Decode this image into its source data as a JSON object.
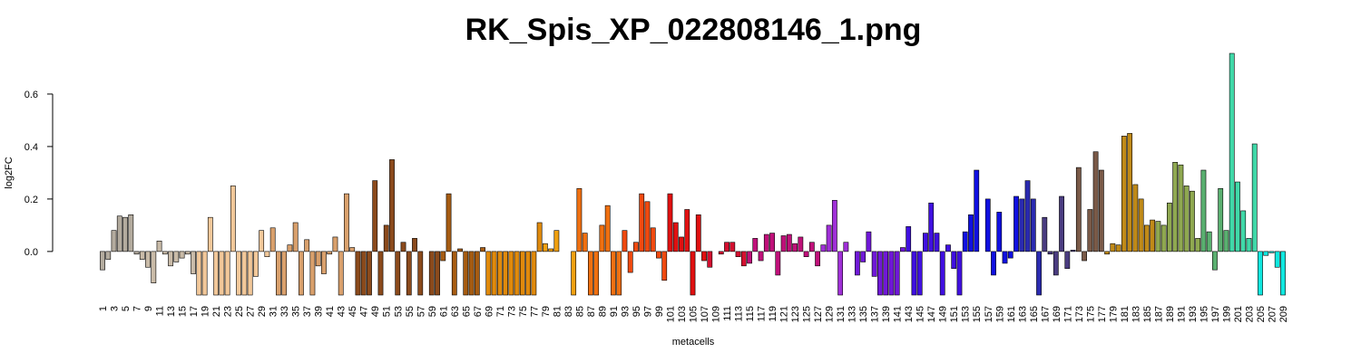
{
  "chart_data": {
    "type": "bar",
    "title": "RK_Spis_XP_022808146_1.png",
    "xlabel": "metacells",
    "ylabel": "log2FC",
    "categories": [
      "1",
      null,
      "3",
      null,
      "5",
      null,
      "7",
      null,
      "9",
      null,
      "11",
      null,
      "13",
      null,
      "15",
      null,
      "17",
      null,
      "19",
      null,
      "21",
      null,
      "23",
      null,
      "25",
      null,
      "27",
      null,
      "29",
      null,
      "31",
      null,
      "33",
      null,
      "35",
      null,
      "37",
      null,
      "39",
      null,
      "41",
      null,
      "43",
      null,
      "45",
      null,
      "47",
      null,
      "49",
      null,
      "51",
      null,
      "53",
      null,
      "55",
      null,
      "57",
      null,
      "59",
      null,
      "61",
      null,
      "63",
      null,
      "65",
      null,
      "67",
      null,
      "69",
      null,
      "71",
      null,
      "73",
      null,
      "75",
      null,
      "77",
      null,
      "79",
      null,
      "81",
      null,
      "83",
      null,
      "85",
      null,
      "87",
      null,
      "89",
      null,
      "91",
      null,
      "93",
      null,
      "95",
      null,
      "97",
      null,
      "99",
      null,
      "101",
      null,
      "103",
      null,
      "105",
      null,
      "107",
      null,
      "109",
      null,
      "111",
      null,
      "113",
      null,
      "115",
      null,
      "117",
      null,
      "119",
      null,
      "121",
      null,
      "123",
      null,
      "125",
      null,
      "127",
      null,
      "129",
      null,
      "131",
      null,
      "133",
      null,
      "135",
      null,
      "137",
      null,
      "139",
      null,
      "141",
      null,
      "143",
      null,
      "145",
      null,
      "147",
      null,
      "149",
      null,
      "151",
      null,
      "153",
      null,
      "155",
      null,
      "157",
      null,
      "159",
      null,
      "161",
      null,
      "163",
      null,
      "165",
      null,
      "167",
      null,
      "169",
      null,
      "171",
      null,
      "173",
      null,
      "175",
      null,
      "177",
      null,
      "179",
      null,
      "181",
      null,
      "183",
      null,
      "185",
      null,
      "187",
      null,
      "189",
      null,
      "191",
      null,
      "193",
      null,
      "195",
      null,
      "197",
      null,
      "199",
      null,
      "201",
      null,
      "203",
      null,
      "205",
      null,
      "207",
      null,
      "209"
    ],
    "values": [
      -0.07,
      -0.03,
      0.08,
      0.135,
      0.13,
      0.14,
      -0.01,
      -0.03,
      -0.06,
      -0.12,
      0.04,
      -0.01,
      -0.055,
      -0.04,
      -0.025,
      -0.01,
      -0.085,
      -0.166,
      -0.166,
      0.13,
      -0.166,
      -0.166,
      -0.166,
      0.25,
      -0.166,
      -0.166,
      -0.166,
      -0.095,
      0.08,
      -0.02,
      0.09,
      -0.166,
      -0.166,
      0.025,
      0.11,
      -0.166,
      0.045,
      -0.166,
      -0.055,
      -0.085,
      -0.01,
      0.055,
      -0.166,
      0.22,
      0.015,
      -0.166,
      -0.166,
      -0.166,
      0.27,
      -0.166,
      0.1,
      0.35,
      -0.166,
      0.035,
      -0.166,
      0.05,
      -0.166,
      0,
      -0.166,
      -0.166,
      -0.035,
      0.22,
      -0.166,
      0.01,
      -0.166,
      -0.166,
      -0.166,
      0.015,
      -0.166,
      -0.166,
      -0.166,
      -0.166,
      -0.166,
      -0.166,
      -0.166,
      -0.166,
      -0.166,
      0.11,
      0.03,
      0.01,
      0.08,
      0,
      0,
      -0.166,
      0.24,
      0.07,
      -0.166,
      -0.166,
      0.1,
      0.175,
      -0.166,
      -0.166,
      0.08,
      -0.08,
      0.035,
      0.22,
      0.19,
      0.09,
      -0.025,
      -0.11,
      0.22,
      0.11,
      0.055,
      0.16,
      -0.166,
      0.14,
      -0.035,
      -0.06,
      0,
      -0.01,
      0.035,
      0.035,
      -0.02,
      -0.055,
      -0.045,
      0.05,
      -0.035,
      0.065,
      0.07,
      -0.09,
      0.06,
      0.065,
      0.03,
      0.055,
      -0.02,
      0.035,
      -0.055,
      0.025,
      0.1,
      0.195,
      -0.166,
      0.035,
      0,
      -0.09,
      -0.04,
      0.075,
      -0.095,
      -0.166,
      -0.166,
      -0.166,
      -0.166,
      0.015,
      0.095,
      -0.166,
      -0.166,
      0.07,
      0.185,
      0.07,
      -0.166,
      0.025,
      -0.065,
      -0.166,
      0.075,
      0.14,
      0.31,
      0,
      0.2,
      -0.09,
      0.15,
      -0.045,
      -0.025,
      0.21,
      0.2,
      0.27,
      0.2,
      -0.166,
      0.13,
      -0.01,
      -0.09,
      0.21,
      -0.065,
      0.005,
      0.32,
      -0.035,
      0.16,
      0.38,
      0.31,
      -0.01,
      0.03,
      0.025,
      0.44,
      0.45,
      0.255,
      0.2,
      0.1,
      0.12,
      0.115,
      0.1,
      0.185,
      0.34,
      0.33,
      0.25,
      0.23,
      0.05,
      0.31,
      0.075,
      -0.07,
      0.24,
      0.08,
      0.755,
      0.265,
      0.155,
      0.05,
      0.41,
      -0.166,
      -0.015,
      -0.005,
      -0.06,
      -0.166
    ],
    "colors": [
      "#b3ab9e",
      "#b3ab9e",
      "#b3ab9e",
      "#b3ab9e",
      "#b3ab9e",
      "#b3ab9e",
      "#b3ab9e",
      "#c9bba8",
      "#c9bba8",
      "#c9bba8",
      "#c9bba8",
      "#c9bba8",
      "#c9bba8",
      "#c9bba8",
      "#c9bba8",
      "#c9bba8",
      "#c9bba8",
      "#f2c89a",
      "#f2c89a",
      "#f2c89a",
      "#f2c89a",
      "#f2c89a",
      "#f2c89a",
      "#f2c89a",
      "#f2c89a",
      "#f2c89a",
      "#f2c89a",
      "#f2c89a",
      "#f2c89a",
      "#f2c89a",
      "#d9a06c",
      "#d9a06c",
      "#d9a06c",
      "#d9a06c",
      "#d9a06c",
      "#d9a06c",
      "#d9a06c",
      "#d9a06c",
      "#d9a06c",
      "#d9a06c",
      "#d9a06c",
      "#d9a06c",
      "#d9a06c",
      "#d9a06c",
      "#d9a06c",
      "#8b4a1c",
      "#8b4a1c",
      "#8b4a1c",
      "#8b4a1c",
      "#8b4a1c",
      "#8b4a1c",
      "#8b4a1c",
      "#8b4a1c",
      "#8b4a1c",
      "#8b4a1c",
      "#8b4a1c",
      "#8b4a1c",
      "#8b4a1c",
      "#8b4a1c",
      "#8b4a1c",
      "#a65c12",
      "#a65c12",
      "#a65c12",
      "#a65c12",
      "#a65c12",
      "#a65c12",
      "#a65c12",
      "#a65c12",
      "#e08a0c",
      "#e08a0c",
      "#e08a0c",
      "#e08a0c",
      "#e08a0c",
      "#e08a0c",
      "#e08a0c",
      "#e08a0c",
      "#e08a0c",
      "#e08a0c",
      "#f0a010",
      "#f0a010",
      "#f0a010",
      "#f0a010",
      "#f0a010",
      "#f0a010",
      "#f07010",
      "#f07010",
      "#f07010",
      "#f07010",
      "#f07010",
      "#f07010",
      "#f07010",
      "#f07010",
      "#f04a10",
      "#f04a10",
      "#f04a10",
      "#f04a10",
      "#f04a10",
      "#f04a10",
      "#f04a10",
      "#f04a10",
      "#e01010",
      "#e01010",
      "#e01010",
      "#e01010",
      "#e01010",
      "#e01010",
      "#e01010",
      "#d41030",
      "#d41030",
      "#d41030",
      "#d41030",
      "#d41030",
      "#d41030",
      "#d41030",
      "#c0107a",
      "#c0107a",
      "#c0107a",
      "#c0107a",
      "#c0107a",
      "#c0107a",
      "#c0107a",
      "#c0107a",
      "#c0107a",
      "#c0107a",
      "#c0107a",
      "#c0107a",
      "#c0107a",
      "#a030d8",
      "#a030d8",
      "#a030d8",
      "#a030d8",
      "#a030d8",
      "#a030d8",
      "#7018d8",
      "#7018d8",
      "#7018d8",
      "#7018d8",
      "#7018d8",
      "#7018d8",
      "#7018d8",
      "#7018d8",
      "#7018d8",
      "#4010e0",
      "#4010e0",
      "#4010e0",
      "#4010e0",
      "#4010e0",
      "#4010e0",
      "#4010e0",
      "#4010e0",
      "#4010e0",
      "#4010e0",
      "#1010e0",
      "#1010e0",
      "#1010e0",
      "#1010e0",
      "#1010e0",
      "#1010e0",
      "#1010e0",
      "#1010e0",
      "#1010e0",
      "#1010e0",
      "#2a2ab0",
      "#2a2ab0",
      "#2a2ab0",
      "#2a2ab0",
      "#4a3c80",
      "#4a3c80",
      "#4a3c80",
      "#4a3c80",
      "#4a3c80",
      "#4a3c80",
      "#7a5a48",
      "#7a5a48",
      "#7a5a48",
      "#7a5a48",
      "#7a5a48",
      "#c08a18",
      "#c08a18",
      "#c08a18",
      "#c08a18",
      "#c08a18",
      "#c08a18",
      "#c08a18",
      "#c08a18",
      "#c08a18",
      "#8fa850",
      "#8fa850",
      "#8fa850",
      "#8fa850",
      "#8fa850",
      "#8fa850",
      "#8fa850",
      "#8fa850",
      "#5ab070",
      "#5ab070",
      "#5ab070",
      "#5ab070",
      "#5ab070",
      "#40d8a8",
      "#40d8a8",
      "#40d8a8",
      "#40d8a8",
      "#40d8a8",
      "#10e8e0",
      "#10e8e0",
      "#10e8e0",
      "#10e8e0",
      "#10e8e0"
    ],
    "ylim": [
      -0.166,
      0.755
    ],
    "yticks": [
      {
        "value": 0,
        "label": "0.0"
      },
      {
        "value": 0.2,
        "label": "0.2"
      },
      {
        "value": 0.4,
        "label": "0.4"
      },
      {
        "value": 0.6,
        "label": "0.6"
      }
    ]
  }
}
